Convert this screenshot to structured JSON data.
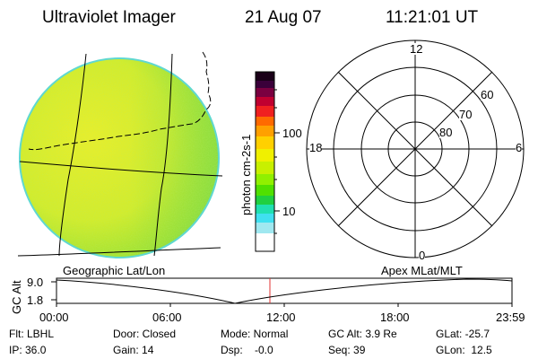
{
  "header": {
    "instrument": "Ultraviolet Imager",
    "date": "21 Aug 07",
    "time": "11:21:01 UT"
  },
  "colorbar": {
    "label": "photon cm-2s-1",
    "ticks": [
      "100",
      "10"
    ],
    "colors": [
      "#1a0018",
      "#3a003a",
      "#7a0040",
      "#c00030",
      "#f02020",
      "#ff6a00",
      "#ffa000",
      "#ffd000",
      "#f0f000",
      "#c8f000",
      "#90f000",
      "#50e000",
      "#20d040",
      "#20e0b0",
      "#40e0f0",
      "#a0e8f0",
      "#ffffff"
    ]
  },
  "polar": {
    "ring_labels": [
      "60",
      "70",
      "80"
    ],
    "mlt_labels": {
      "top": "12",
      "left": "18",
      "right": "6",
      "bottom": "0"
    }
  },
  "panel_labels": {
    "left": "Geographic Lat/Lon",
    "right": "Apex MLat/MLT"
  },
  "altitude_plot": {
    "ylabel": "GC Alt",
    "yticks": [
      "9.0",
      "1.8"
    ],
    "xticks": [
      "00:00",
      "06:00",
      "12:00",
      "18:00",
      "23:59"
    ],
    "current_time_marker": "11:21"
  },
  "info": {
    "flt": "Flt: LBHL",
    "ip": "IP: 36.0",
    "door": "Door: Closed",
    "gain": "Gain: 14",
    "mode": "Mode: Normal",
    "dsp": "Dsp:    -0.0",
    "gc_alt": "GC Alt: 3.9 Re",
    "seq": "Seq: 39",
    "glat": "GLat: -25.7",
    "glon": "GLon:  12.5"
  }
}
